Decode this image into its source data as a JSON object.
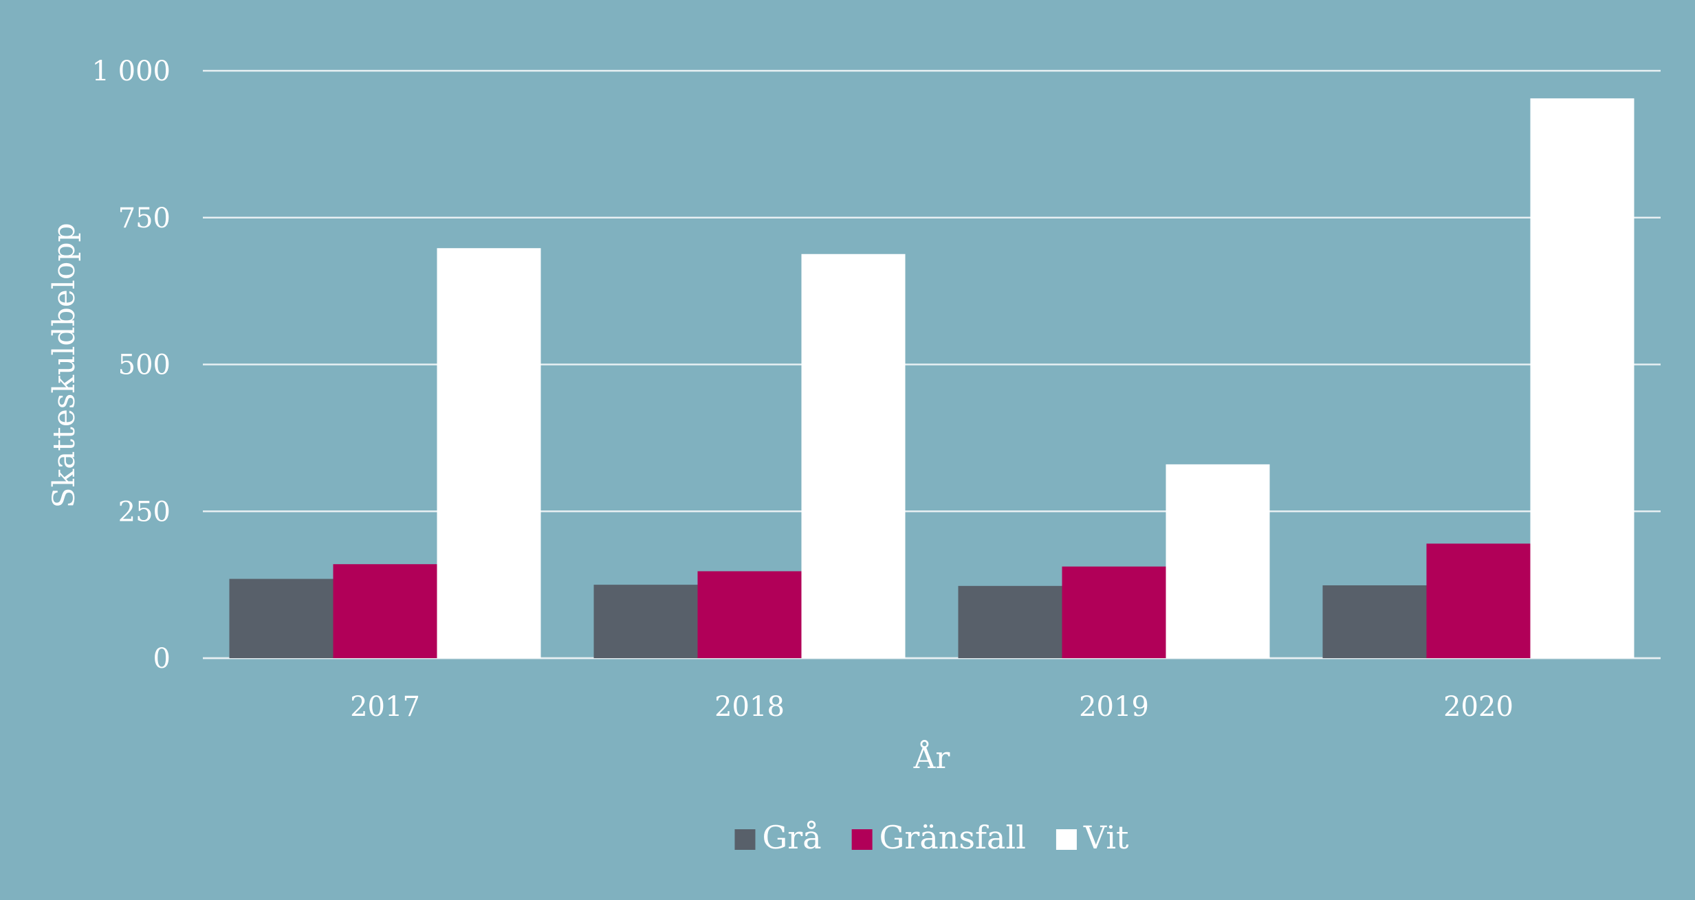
{
  "chart_data": {
    "type": "bar",
    "categories": [
      "2017",
      "2018",
      "2019",
      "2020"
    ],
    "series": [
      {
        "name": "Grå",
        "color": "#58606a",
        "values": [
          135,
          125,
          123,
          124
        ]
      },
      {
        "name": "Gränsfall",
        "color": "#b10058",
        "values": [
          160,
          148,
          156,
          195
        ]
      },
      {
        "name": "Vit",
        "color": "#ffffff",
        "values": [
          698,
          688,
          330,
          953
        ]
      }
    ],
    "xlabel": "År",
    "ylabel": "Skatteskuldbelopp",
    "ylim": [
      0,
      1000
    ],
    "yticks": [
      {
        "value": 0,
        "label": "0"
      },
      {
        "value": 250,
        "label": "250"
      },
      {
        "value": 500,
        "label": "500"
      },
      {
        "value": 750,
        "label": "750"
      },
      {
        "value": 1000,
        "label": "1 000"
      }
    ],
    "grid": true,
    "legend_position": "bottom-center",
    "background_color": "#80b1bf",
    "gridline_color": "#e8f0f3"
  }
}
